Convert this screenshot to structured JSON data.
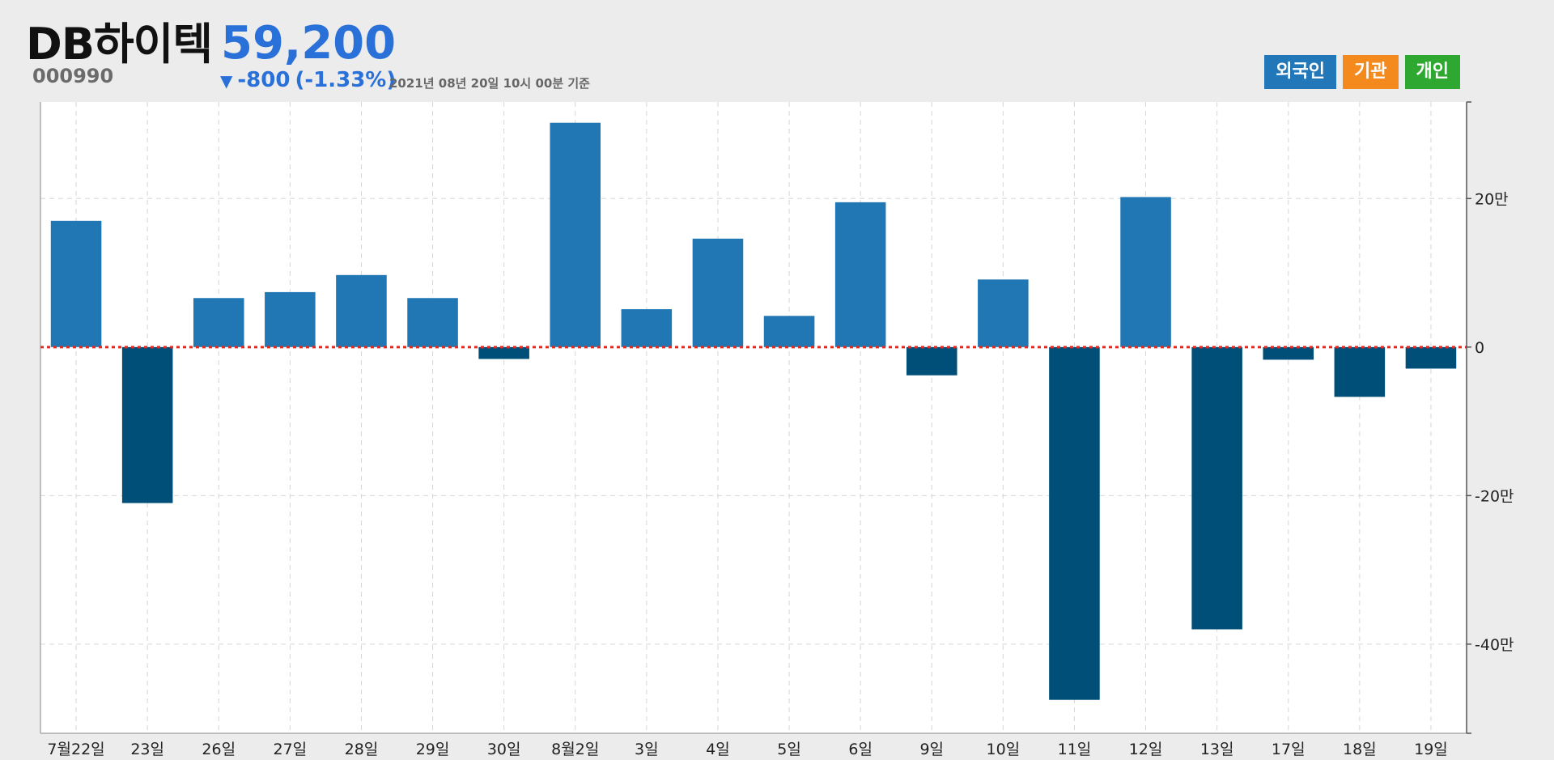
{
  "header": {
    "stock_name": "DB하이텍",
    "price": "59,200",
    "code": "000990",
    "change_arrow": "▼",
    "change_value": "-800",
    "change_pct": "(-1.33%)",
    "as_of": "2021년 08년 20일 10시 00분 기준"
  },
  "legend": [
    {
      "label": "외국인",
      "color": "#2277b9"
    },
    {
      "label": "기관",
      "color": "#f48a1d"
    },
    {
      "label": "개인",
      "color": "#2ea830"
    }
  ],
  "colors": {
    "positive_bar": "#2077b4",
    "negative_bar": "#004f78",
    "zero_line": "#e8281e",
    "grid": "#d6d6d6",
    "price_text": "#2a70d9"
  },
  "chart_data": {
    "type": "bar",
    "series": [
      {
        "name": "외국인",
        "values": [
          170000,
          -210000,
          66000,
          74000,
          97000,
          66000,
          -16000,
          302000,
          51000,
          146000,
          42000,
          195000,
          -38000,
          91000,
          -475000,
          202000,
          -380000,
          -17000,
          -67000,
          -29000
        ]
      }
    ],
    "categories": [
      "7월22일",
      "23일",
      "26일",
      "27일",
      "28일",
      "29일",
      "30일",
      "8월2일",
      "3일",
      "4일",
      "5일",
      "6일",
      "9일",
      "10일",
      "11일",
      "12일",
      "13일",
      "17일",
      "18일",
      "19일"
    ],
    "ylim": [
      -520000,
      330000
    ],
    "yticks": [
      200000,
      0,
      -200000,
      -400000
    ],
    "ytick_labels": [
      "20만",
      "0",
      "-20만",
      "-40만"
    ],
    "y_axis_side": "right",
    "grid": true,
    "zero_line": "dotted"
  }
}
